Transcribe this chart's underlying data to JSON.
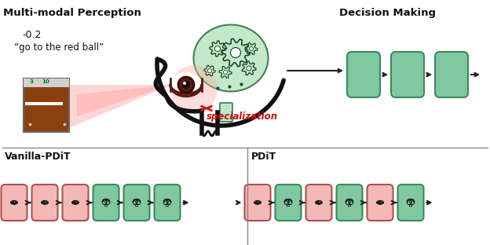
{
  "bg_color": "#ffffff",
  "pink_color": "#f5b8b8",
  "green_color": "#80c8a0",
  "pink_border": "#b05050",
  "green_border": "#3a8a5a",
  "arrow_color": "#222222",
  "red_color": "#cc1111",
  "text_color": "#111111",
  "head_color": "#111111",
  "specialization_color": "#cc1111",
  "game_bg": "#8B4010",
  "label_vanilla": "Vanilla-PDiT",
  "label_pdit": "PDiT",
  "label_perception": "Multi-modal Perception",
  "label_decision": "Decision Making",
  "label_reward": "-0.2",
  "label_text": "“go to the red ball”",
  "label_specialization": "specialization",
  "van_seq": [
    "pink",
    "pink",
    "pink",
    "green",
    "green",
    "green"
  ],
  "pdit_seq": [
    "pink",
    "green",
    "pink",
    "green",
    "pink",
    "green"
  ]
}
